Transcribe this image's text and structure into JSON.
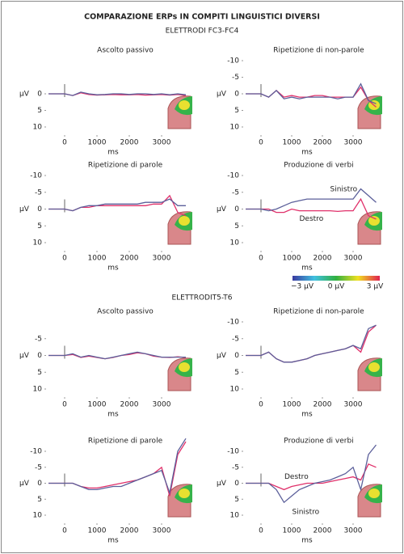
{
  "header": {
    "title": "COMPARAZIONE ERPs IN COMPITI LINGUISTICI DIVERSI",
    "section_titles": [
      "ELETTRODI FC3-FC4",
      "ELETTRODIT5-T6"
    ]
  },
  "color_scale": {
    "labels": [
      "−3 μV",
      "0 μV",
      "3 μV"
    ]
  },
  "chart_data": [
    {
      "type": "line",
      "title": "Ascolto passivo",
      "xlabel": "ms",
      "ylabel": "μV",
      "y_reversed": true,
      "xlim": [
        -500,
        4000
      ],
      "xticks": [
        0,
        1000,
        2000,
        3000
      ],
      "ylim": [
        -10,
        10
      ],
      "yticks": [
        0,
        5,
        10
      ],
      "x": [
        -500,
        -250,
        0,
        250,
        500,
        750,
        1000,
        1250,
        1500,
        1750,
        2000,
        2250,
        2500,
        2750,
        3000,
        3250,
        3500,
        3750
      ],
      "series": [
        {
          "color": "#e0306a",
          "values": [
            0,
            0,
            0,
            0.5,
            -0.3,
            0.2,
            0.4,
            0.3,
            0.2,
            0.3,
            0.3,
            0.2,
            0.4,
            0.3,
            0.2,
            0.4,
            0.2,
            0.5
          ]
        },
        {
          "color": "#5b5f9a",
          "values": [
            0,
            0,
            0,
            0.5,
            -0.5,
            0,
            0.3,
            0.2,
            0,
            0,
            0.2,
            0,
            0,
            0.2,
            0,
            0.3,
            0,
            0.3
          ]
        }
      ]
    },
    {
      "type": "line",
      "title": "Ripetizione di non-parole",
      "xlabel": "ms",
      "ylabel": "μV",
      "y_reversed": true,
      "xlim": [
        -500,
        4000
      ],
      "xticks": [
        0,
        1000,
        2000,
        3000
      ],
      "ylim": [
        -10,
        10
      ],
      "yticks": [
        -10,
        -5,
        0,
        5,
        10
      ],
      "x": [
        -500,
        -250,
        0,
        250,
        500,
        750,
        1000,
        1250,
        1500,
        1750,
        2000,
        2250,
        2500,
        2750,
        3000,
        3250,
        3500,
        3750
      ],
      "series": [
        {
          "color": "#e0306a",
          "values": [
            0,
            0,
            0,
            1,
            -1,
            1,
            0.5,
            1,
            1,
            0.5,
            0.5,
            1,
            1,
            1,
            1,
            -2,
            2,
            4
          ]
        },
        {
          "color": "#5b5f9a",
          "values": [
            0,
            0,
            0,
            1,
            -1,
            1.5,
            1,
            1.5,
            1,
            1,
            1,
            1,
            1.5,
            1,
            1,
            -3,
            2,
            3
          ]
        }
      ]
    },
    {
      "type": "line",
      "title": "Ripetizione di parole",
      "xlabel": "ms",
      "ylabel": "μV",
      "y_reversed": true,
      "xlim": [
        -500,
        4000
      ],
      "xticks": [
        0,
        1000,
        2000,
        3000
      ],
      "ylim": [
        -10,
        10
      ],
      "yticks": [
        -10,
        -5,
        0,
        5,
        10
      ],
      "x": [
        -500,
        -250,
        0,
        250,
        500,
        750,
        1000,
        1250,
        1500,
        1750,
        2000,
        2250,
        2500,
        2750,
        3000,
        3250,
        3500,
        3750
      ],
      "series": [
        {
          "color": "#e0306a",
          "values": [
            0,
            0,
            0,
            0.5,
            -0.5,
            -0.5,
            -1,
            -1,
            -1,
            -1,
            -1,
            -1,
            -1,
            -1.5,
            -1.5,
            -4,
            1,
            2
          ]
        },
        {
          "color": "#5b5f9a",
          "values": [
            0,
            0,
            0,
            0.5,
            -0.5,
            -1,
            -1,
            -1.5,
            -1.5,
            -1.5,
            -1.5,
            -1.5,
            -2,
            -2,
            -2,
            -3,
            -1,
            -1
          ]
        }
      ]
    },
    {
      "type": "line",
      "title": "Produzione di verbi",
      "xlabel": "ms",
      "ylabel": "μV",
      "y_reversed": true,
      "xlim": [
        -500,
        4000
      ],
      "xticks": [
        0,
        1000,
        2000,
        3000
      ],
      "ylim": [
        -10,
        10
      ],
      "yticks": [
        -10,
        -5,
        0,
        5,
        10
      ],
      "x": [
        -500,
        -250,
        0,
        250,
        500,
        750,
        1000,
        1250,
        1500,
        1750,
        2000,
        2250,
        2500,
        2750,
        3000,
        3250,
        3500,
        3750
      ],
      "series": [
        {
          "name": "Destro",
          "color": "#e0306a",
          "values": [
            0,
            0,
            0,
            0,
            1,
            1,
            0,
            0.5,
            0.5,
            0.5,
            0.5,
            0.5,
            0.7,
            0.5,
            0.5,
            -3,
            2,
            3
          ]
        },
        {
          "name": "Sinistro",
          "color": "#5b5f9a",
          "values": [
            0,
            0,
            0,
            0.5,
            0,
            -1,
            -2,
            -2.5,
            -3,
            -3,
            -3,
            -3,
            -3,
            -3,
            -3,
            -6,
            -4,
            -2
          ]
        }
      ]
    },
    {
      "type": "line",
      "title": "Ascolto passivo",
      "xlabel": "ms",
      "ylabel": "μV",
      "y_reversed": true,
      "xlim": [
        -500,
        4000
      ],
      "xticks": [
        0,
        1000,
        2000,
        3000
      ],
      "ylim": [
        -10,
        10
      ],
      "yticks": [
        -5,
        0,
        5,
        10
      ],
      "x": [
        -500,
        -250,
        0,
        250,
        500,
        750,
        1000,
        1250,
        1500,
        1750,
        2000,
        2250,
        2500,
        2750,
        3000,
        3250,
        3500,
        3750
      ],
      "series": [
        {
          "color": "#e0306a",
          "values": [
            0,
            0,
            0,
            -0.3,
            0.6,
            0.2,
            0.6,
            1,
            0.6,
            0,
            -0.3,
            -0.8,
            -0.5,
            0.2,
            0.5,
            0.6,
            0.4,
            0.6
          ]
        },
        {
          "color": "#5b5f9a",
          "values": [
            0,
            0,
            0,
            -0.5,
            0.5,
            0,
            0.5,
            1,
            0.5,
            0,
            -0.5,
            -1,
            -0.5,
            0,
            0.5,
            0.5,
            0.5,
            0.5
          ]
        }
      ]
    },
    {
      "type": "line",
      "title": "Ripetizione di non-parole",
      "xlabel": "ms",
      "ylabel": "μV",
      "y_reversed": true,
      "xlim": [
        -500,
        4000
      ],
      "xticks": [
        0,
        1000,
        2000,
        3000
      ],
      "ylim": [
        -10,
        10
      ],
      "yticks": [
        -10,
        -5,
        0,
        5,
        10
      ],
      "x": [
        -500,
        -250,
        0,
        250,
        500,
        750,
        1000,
        1250,
        1500,
        1750,
        2000,
        2250,
        2500,
        2750,
        3000,
        3250,
        3500,
        3750
      ],
      "series": [
        {
          "color": "#e0306a",
          "values": [
            0,
            0,
            0,
            -1,
            1,
            2,
            2,
            1.5,
            1,
            0,
            -0.5,
            -1,
            -1.5,
            -2,
            -3,
            -1,
            -7,
            -9
          ]
        },
        {
          "color": "#5b5f9a",
          "values": [
            0,
            0,
            0,
            -1,
            1,
            2,
            2,
            1.5,
            1,
            0,
            -0.5,
            -1,
            -1.5,
            -2,
            -3,
            -2,
            -8,
            -9
          ]
        }
      ]
    },
    {
      "type": "line",
      "title": "Ripetizione di parole",
      "xlabel": "ms",
      "ylabel": "μV",
      "y_reversed": true,
      "xlim": [
        -500,
        4000
      ],
      "xticks": [
        0,
        1000,
        2000,
        3000
      ],
      "ylim": [
        -10,
        10
      ],
      "yticks": [
        -10,
        -5,
        0,
        5,
        10
      ],
      "x": [
        -500,
        -250,
        0,
        250,
        500,
        750,
        1000,
        1250,
        1500,
        1750,
        2000,
        2250,
        2500,
        2750,
        3000,
        3250,
        3500,
        3750
      ],
      "series": [
        {
          "color": "#e0306a",
          "values": [
            0,
            0,
            0,
            0,
            1,
            1.5,
            1.5,
            1,
            0.5,
            0,
            -0.5,
            -1,
            -2,
            -3,
            -5,
            4,
            -9,
            -13
          ]
        },
        {
          "color": "#5b5f9a",
          "values": [
            0,
            0,
            0,
            0,
            1,
            2,
            2,
            1.5,
            1,
            1,
            0,
            -1,
            -2,
            -3,
            -4,
            3,
            -10,
            -14
          ]
        }
      ]
    },
    {
      "type": "line",
      "title": "Produzione di verbi",
      "xlabel": "ms",
      "ylabel": "μV",
      "y_reversed": true,
      "xlim": [
        -500,
        4000
      ],
      "xticks": [
        0,
        1000,
        2000,
        3000
      ],
      "ylim": [
        -10,
        10
      ],
      "yticks": [
        -10,
        -5,
        0,
        5,
        10
      ],
      "x": [
        -500,
        -250,
        0,
        250,
        500,
        750,
        1000,
        1250,
        1500,
        1750,
        2000,
        2250,
        2500,
        2750,
        3000,
        3250,
        3500,
        3750
      ],
      "series": [
        {
          "name": "Destro",
          "color": "#e0306a",
          "values": [
            0,
            0,
            0,
            0,
            1,
            2,
            1,
            0.5,
            0,
            0,
            0,
            -0.5,
            -1,
            -1.5,
            -2,
            -1,
            -6,
            -5
          ]
        },
        {
          "name": "Sinistro",
          "color": "#5b5f9a",
          "values": [
            0,
            0,
            0,
            0,
            2,
            6,
            4,
            2,
            1,
            0,
            -0.5,
            -1,
            -2,
            -3,
            -5,
            2,
            -9,
            -12
          ]
        }
      ]
    }
  ]
}
